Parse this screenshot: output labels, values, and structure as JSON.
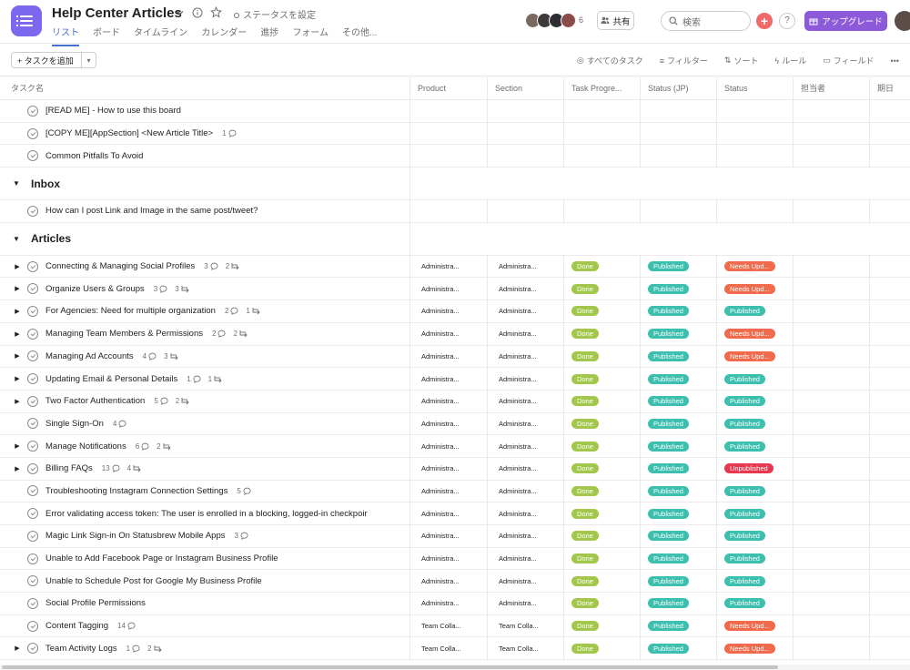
{
  "header": {
    "title": "Help Center Articles",
    "set_status": "ステータスを設定",
    "tabs": [
      "リスト",
      "ボード",
      "タイムライン",
      "カレンダー",
      "進捗",
      "フォーム",
      "その他..."
    ],
    "member_count": "6",
    "share": "共有",
    "search_placeholder": "検索",
    "help": "?",
    "upgrade": "アップグレード"
  },
  "toolbar": {
    "add_task": "タスクを追加",
    "all_tasks": "すべてのタスク",
    "filter": "フィルター",
    "sort": "ソート",
    "rules": "ルール",
    "fields": "フィールド"
  },
  "columns": [
    "タスク名",
    "Product",
    "Section",
    "Task Progre...",
    "Status (JP)",
    "Status",
    "担当者",
    "期日"
  ],
  "top_tasks": [
    {
      "name": "[READ ME] - How to use this board",
      "comments": "",
      "subtasks": ""
    },
    {
      "name": "[COPY ME][AppSection] <New Article Title>",
      "comments": "1",
      "subtasks": ""
    },
    {
      "name": "Common Pitfalls To Avoid",
      "comments": "",
      "subtasks": ""
    }
  ],
  "sections": {
    "inbox": "Inbox",
    "articles": "Articles"
  },
  "inbox_tasks": [
    {
      "name": "How can I post Link and Image in the same post/tweet?"
    }
  ],
  "article_tasks": [
    {
      "name": "Connecting & Managing Social Profiles",
      "comments": "3",
      "subtasks": "2",
      "expand": true,
      "product": "Administra...",
      "section": "Administra...",
      "progress": "Done",
      "status_jp": "Published",
      "status": "Needs Upd...",
      "status_kind": "needs"
    },
    {
      "name": "Organize Users & Groups",
      "comments": "3",
      "subtasks": "3",
      "expand": true,
      "product": "Administra...",
      "section": "Administra...",
      "progress": "Done",
      "status_jp": "Published",
      "status": "Needs Upd...",
      "status_kind": "needs"
    },
    {
      "name": "For Agencies: Need for multiple organization",
      "comments": "2",
      "subtasks": "1",
      "expand": true,
      "product": "Administra...",
      "section": "Administra...",
      "progress": "Done",
      "status_jp": "Published",
      "status": "Published",
      "status_kind": "pub"
    },
    {
      "name": "Managing Team Members & Permissions",
      "comments": "2",
      "subtasks": "2",
      "expand": true,
      "product": "Administra...",
      "section": "Administra...",
      "progress": "Done",
      "status_jp": "Published",
      "status": "Needs Upd...",
      "status_kind": "needs"
    },
    {
      "name": "Managing Ad Accounts",
      "comments": "4",
      "subtasks": "3",
      "expand": true,
      "product": "Administra...",
      "section": "Administra...",
      "progress": "Done",
      "status_jp": "Published",
      "status": "Needs Upd...",
      "status_kind": "needs"
    },
    {
      "name": "Updating Email & Personal Details",
      "comments": "1",
      "subtasks": "1",
      "expand": true,
      "product": "Administra...",
      "section": "Administra...",
      "progress": "Done",
      "status_jp": "Published",
      "status": "Published",
      "status_kind": "pub"
    },
    {
      "name": "Two Factor Authentication",
      "comments": "5",
      "subtasks": "2",
      "expand": true,
      "product": "Administra...",
      "section": "Administra...",
      "progress": "Done",
      "status_jp": "Published",
      "status": "Published",
      "status_kind": "pub"
    },
    {
      "name": "Single Sign-On",
      "comments": "4",
      "subtasks": "",
      "expand": false,
      "product": "Administra...",
      "section": "Administra...",
      "progress": "Done",
      "status_jp": "Published",
      "status": "Published",
      "status_kind": "pub"
    },
    {
      "name": "Manage Notifications",
      "comments": "6",
      "subtasks": "2",
      "expand": true,
      "product": "Administra...",
      "section": "Administra...",
      "progress": "Done",
      "status_jp": "Published",
      "status": "Published",
      "status_kind": "pub"
    },
    {
      "name": "Billing FAQs",
      "comments": "13",
      "subtasks": "4",
      "expand": true,
      "product": "Administra...",
      "section": "Administra...",
      "progress": "Done",
      "status_jp": "Published",
      "status": "Unpublished",
      "status_kind": "unpub"
    },
    {
      "name": "Troubleshooting Instagram Connection Settings",
      "comments": "5",
      "subtasks": "",
      "expand": false,
      "product": "Administra...",
      "section": "Administra...",
      "progress": "Done",
      "status_jp": "Published",
      "status": "Published",
      "status_kind": "pub"
    },
    {
      "name": "Error validating access token: The user is enrolled in a blocking, logged-in checkpoir",
      "comments": "",
      "subtasks": "",
      "expand": false,
      "product": "Administra...",
      "section": "Administra...",
      "progress": "Done",
      "status_jp": "Published",
      "status": "Published",
      "status_kind": "pub"
    },
    {
      "name": "Magic Link Sign-in On Statusbrew Mobile Apps",
      "comments": "3",
      "subtasks": "",
      "expand": false,
      "product": "Administra...",
      "section": "Administra...",
      "progress": "Done",
      "status_jp": "Published",
      "status": "Published",
      "status_kind": "pub"
    },
    {
      "name": "Unable to Add Facebook Page or Instagram Business Profile",
      "comments": "",
      "subtasks": "",
      "expand": false,
      "product": "Administra...",
      "section": "Administra...",
      "progress": "Done",
      "status_jp": "Published",
      "status": "Published",
      "status_kind": "pub"
    },
    {
      "name": "Unable to Schedule Post for Google My Business Profile",
      "comments": "",
      "subtasks": "",
      "expand": false,
      "product": "Administra...",
      "section": "Administra...",
      "progress": "Done",
      "status_jp": "Published",
      "status": "Published",
      "status_kind": "pub"
    },
    {
      "name": "Social Profile Permissions",
      "comments": "",
      "subtasks": "",
      "expand": false,
      "product": "Administra...",
      "section": "Administra...",
      "progress": "Done",
      "status_jp": "Published",
      "status": "Published",
      "status_kind": "pub"
    },
    {
      "name": "Content Tagging",
      "comments": "14",
      "subtasks": "",
      "expand": false,
      "product": "Team Colla...",
      "section": "Team Colla...",
      "progress": "Done",
      "status_jp": "Published",
      "status": "Needs Upd...",
      "status_kind": "needs"
    },
    {
      "name": "Team Activity Logs",
      "comments": "1",
      "subtasks": "2",
      "expand": true,
      "product": "Team Colla...",
      "section": "Team Colla...",
      "progress": "Done",
      "status_jp": "Published",
      "status": "Needs Upd...",
      "status_kind": "needs"
    }
  ]
}
